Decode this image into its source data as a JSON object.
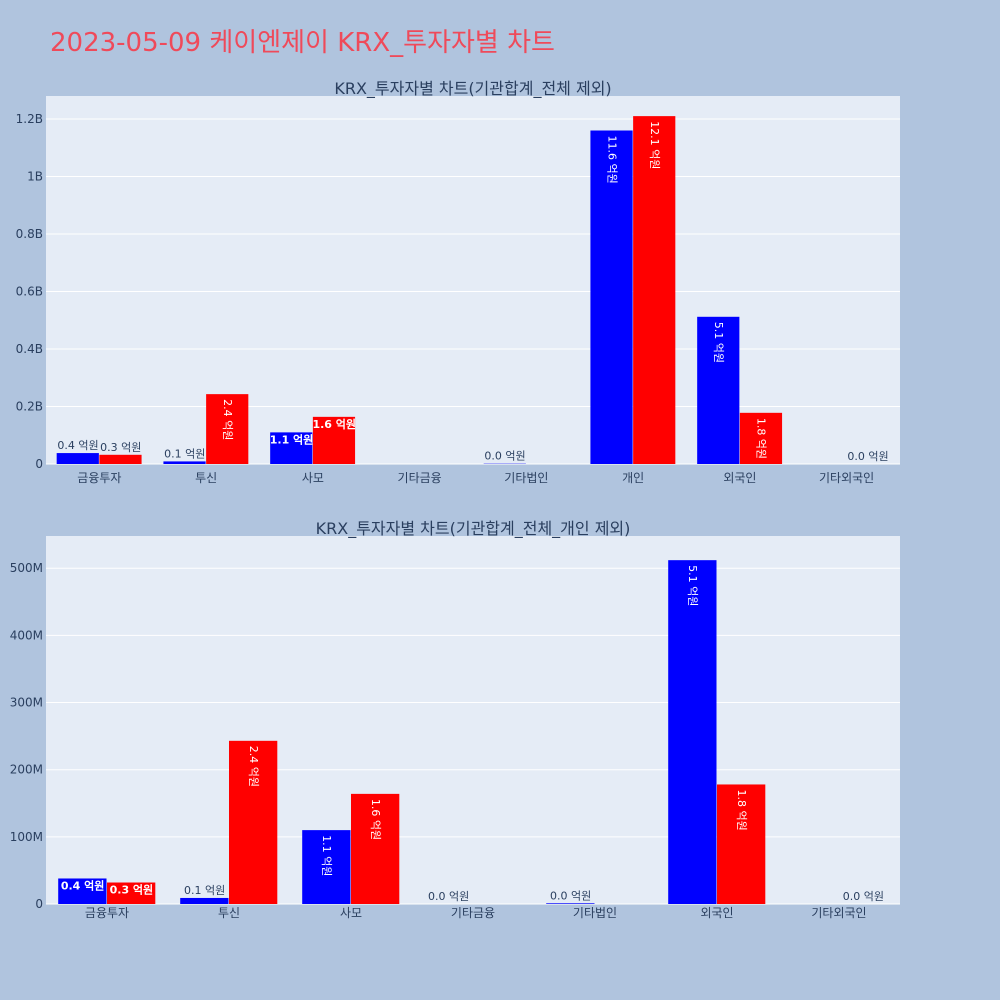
{
  "page": {
    "title": "2023-05-09 케이엔제이 KRX_투자자별 차트"
  },
  "colors": {
    "buy": "#0000ff",
    "sell": "#ff0000",
    "plot_bg": "#e5ecf6",
    "paper_bg": "#b0c4de",
    "title": "#ef4a5a"
  },
  "chart_data": [
    {
      "type": "bar",
      "title": "KRX_투자자별 차트(기관합계_전체 제외)",
      "categories": [
        "금융투자",
        "투신",
        "사모",
        "기타금융",
        "기타법인",
        "개인",
        "외국인",
        "기타외국인"
      ],
      "ylim": [
        0,
        1280000000
      ],
      "yticks": [
        0,
        200000000,
        400000000,
        600000000,
        800000000,
        1000000000,
        1200000000
      ],
      "ytick_labels": [
        "0",
        "0.2B",
        "0.4B",
        "0.6B",
        "0.8B",
        "1B",
        "1.2B"
      ],
      "grid": true,
      "series": [
        {
          "color": "#0000ff",
          "values": [
            38000000,
            9000000,
            110000000,
            0,
            1000000,
            1160000000,
            512000000,
            0
          ],
          "labels": [
            "0.4 억원",
            "0.1 억원",
            "1.1 억원",
            "",
            "0.0 억원",
            "11.6 억원",
            "5.1 억원",
            ""
          ]
        },
        {
          "color": "#ff0000",
          "values": [
            32000000,
            243000000,
            164000000,
            0,
            0,
            1210000000,
            178000000,
            0
          ],
          "labels": [
            "0.3 억원",
            "2.4 억원",
            "1.6 억원",
            "",
            "",
            "12.1 억원",
            "1.8 억원",
            "0.0 억원"
          ]
        }
      ]
    },
    {
      "type": "bar",
      "title": "KRX_투자자별 차트(기관합계_전체_개인 제외)",
      "categories": [
        "금융투자",
        "투신",
        "사모",
        "기타금융",
        "기타법인",
        "외국인",
        "기타외국인"
      ],
      "ylim": [
        0,
        548000000
      ],
      "yticks": [
        0,
        100000000,
        200000000,
        300000000,
        400000000,
        500000000
      ],
      "ytick_labels": [
        "0",
        "100M",
        "200M",
        "300M",
        "400M",
        "500M"
      ],
      "grid": true,
      "series": [
        {
          "color": "#0000ff",
          "values": [
            38000000,
            9000000,
            110000000,
            0,
            1000000,
            512000000,
            0
          ],
          "labels": [
            "0.4 억원",
            "0.1 억원",
            "1.1 억원",
            "0.0 억원",
            "0.0 억원",
            "5.1 억원",
            ""
          ]
        },
        {
          "color": "#ff0000",
          "values": [
            32000000,
            243000000,
            164000000,
            0,
            0,
            178000000,
            0
          ],
          "labels": [
            "0.3 억원",
            "2.4 억원",
            "1.6 억원",
            "",
            "",
            "1.8 억원",
            "0.0 억원"
          ]
        }
      ]
    }
  ]
}
